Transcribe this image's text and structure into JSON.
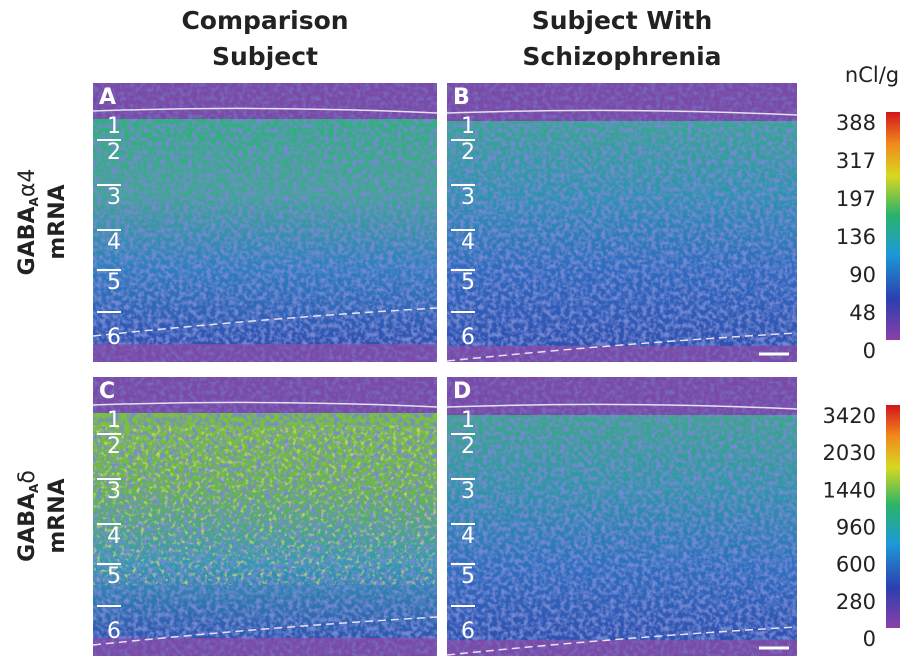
{
  "columns": [
    [
      "Comparison",
      "Subject"
    ],
    [
      "Subject With",
      "Schizophrenia"
    ]
  ],
  "rows": [
    {
      "gene": "GABA",
      "subscript": "A",
      "subunit": "α4",
      "label": "mRNA",
      "unit": "nCl/g",
      "colorbar_ticks": [
        388,
        317,
        197,
        136,
        90,
        48,
        0
      ]
    },
    {
      "gene": "GABA",
      "subscript": "A",
      "subunit": "δ",
      "label": "mRNA",
      "colorbar_ticks": [
        3420,
        2030,
        1440,
        960,
        600,
        280,
        0
      ]
    }
  ],
  "panels": [
    "A",
    "B",
    "C",
    "D"
  ],
  "layers": [
    "1",
    "2",
    "3",
    "4",
    "5",
    "6"
  ]
}
